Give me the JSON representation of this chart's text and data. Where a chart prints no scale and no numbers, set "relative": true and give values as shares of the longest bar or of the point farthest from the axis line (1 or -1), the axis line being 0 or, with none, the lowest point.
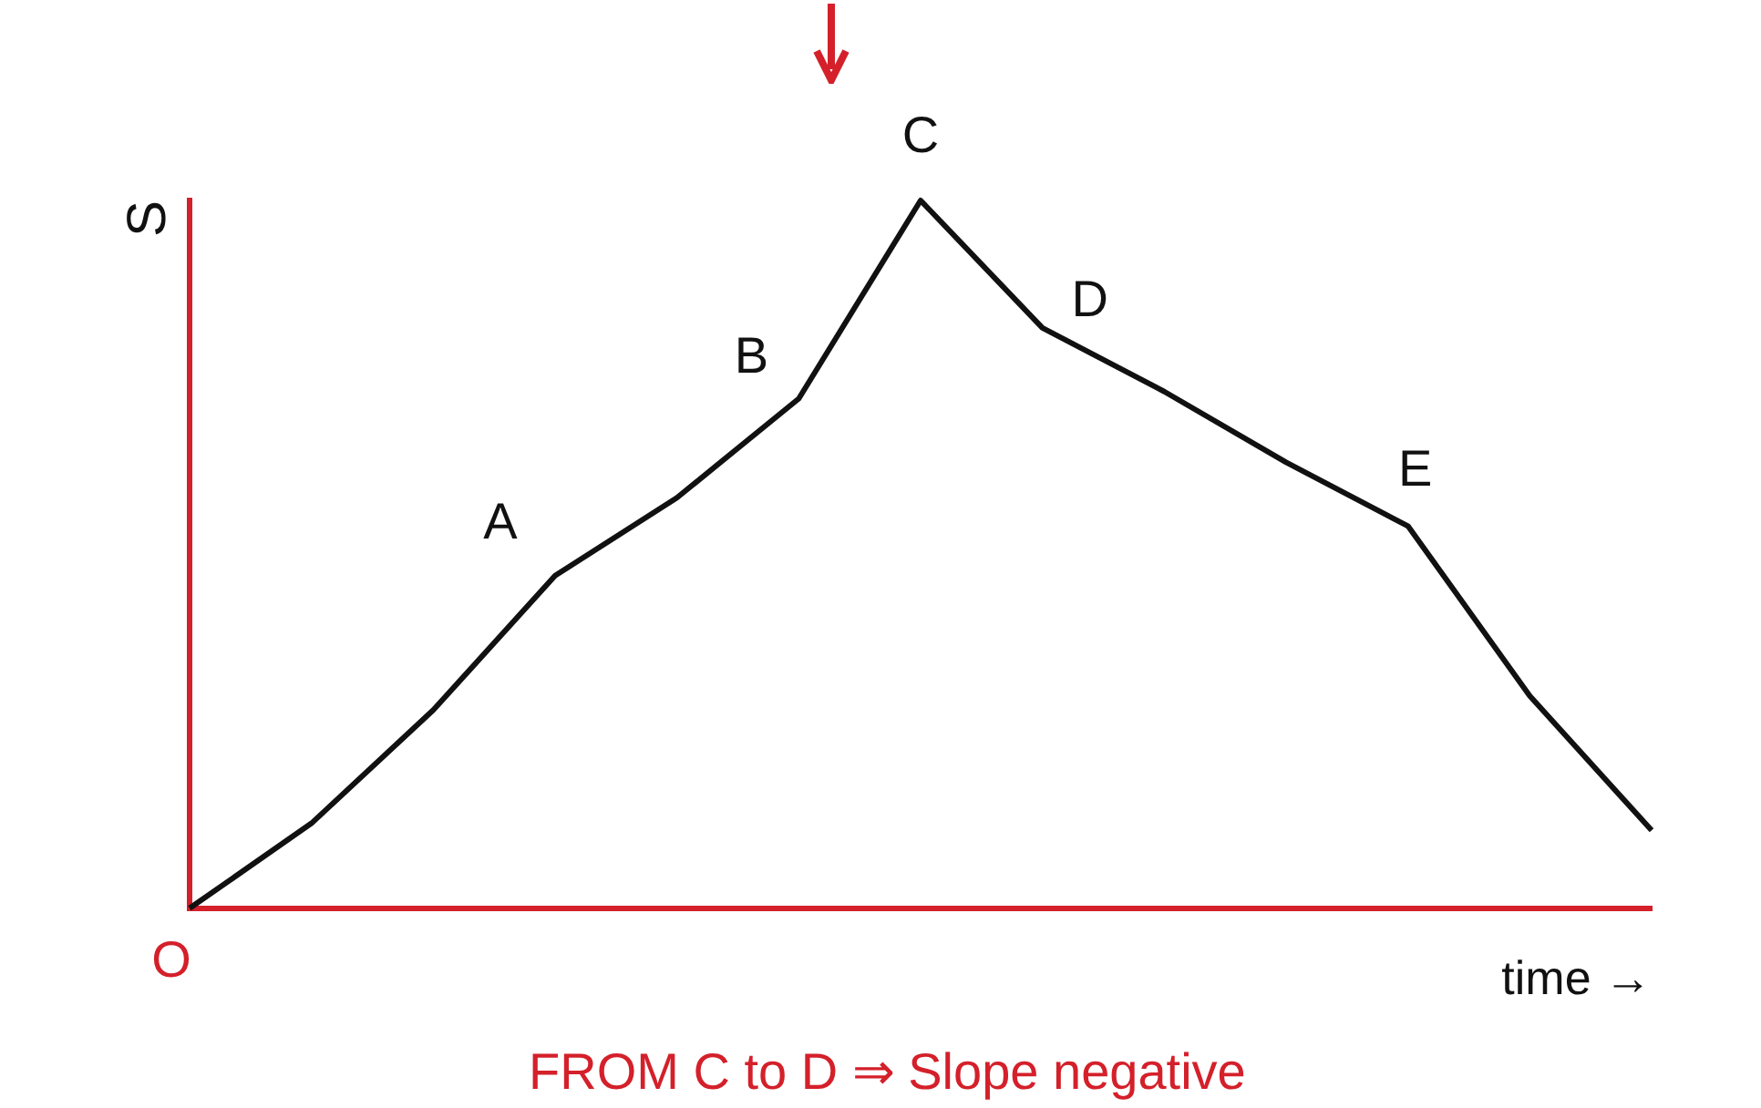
{
  "chart_data": {
    "type": "line",
    "relative": true,
    "xlabel": "time →",
    "ylabel": "S",
    "categories": [
      null,
      null,
      null,
      null,
      null,
      null,
      null,
      null,
      null,
      null,
      null,
      null,
      null
    ],
    "series": [
      {
        "color": "#111111",
        "values": [
          0,
          0.12,
          0.28,
          0.47,
          0.58,
          0.72,
          1,
          0.82,
          0.73,
          0.63,
          0.54,
          0.3,
          0.11
        ]
      }
    ],
    "annotations": [
      "O",
      "A",
      "B",
      "C",
      "D",
      "E",
      "FROM C to D ⇒ Slope negative"
    ],
    "grid": false,
    "legend": false,
    "marker": "none",
    "line_style": "solid"
  }
}
